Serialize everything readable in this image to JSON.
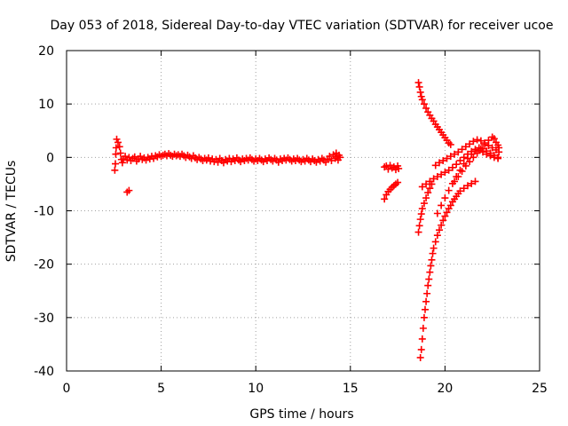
{
  "chart_data": {
    "type": "scatter",
    "title": "Day 053 of 2018, Sidereal Day-to-day VTEC variation (SDTVAR) for receiver ucoe",
    "xlabel": "GPS time / hours",
    "ylabel": "SDTVAR / TECUs",
    "xlim": [
      0,
      25
    ],
    "ylim": [
      -40,
      20
    ],
    "x_ticks": [
      0,
      5,
      10,
      15,
      20,
      25
    ],
    "y_ticks": [
      -40,
      -30,
      -20,
      -10,
      0,
      10,
      20
    ],
    "x_tick_labels": [
      "0",
      "5",
      "10",
      "15",
      "20",
      "25"
    ],
    "y_tick_labels": [
      "-40",
      "-30",
      "-20",
      "-10",
      "0",
      "10",
      "20"
    ],
    "grid": true,
    "marker": "+",
    "color": "#ff0000",
    "series": [
      {
        "points": [
          [
            2.55,
            -2.4
          ],
          [
            2.58,
            -1.2
          ],
          [
            2.6,
            0.6
          ],
          [
            2.62,
            1.8
          ],
          [
            2.65,
            3.4
          ],
          [
            2.72,
            2.8
          ],
          [
            2.8,
            2.0
          ],
          [
            2.85,
            0.8
          ],
          [
            2.9,
            -0.4
          ],
          [
            2.95,
            -1.0
          ],
          [
            3.2,
            -6.5
          ],
          [
            3.3,
            -6.2
          ],
          [
            3.0,
            -0.3
          ],
          [
            3.1,
            0.2
          ],
          [
            3.2,
            -0.5
          ],
          [
            3.3,
            0.0
          ],
          [
            3.4,
            -0.6
          ],
          [
            3.5,
            -0.2
          ],
          [
            3.6,
            0.1
          ],
          [
            3.7,
            -0.7
          ],
          [
            3.8,
            -0.3
          ],
          [
            3.9,
            0.2
          ],
          [
            4.0,
            -0.4
          ],
          [
            4.1,
            -0.1
          ],
          [
            4.2,
            -0.5
          ],
          [
            4.3,
            0.0
          ],
          [
            4.4,
            -0.3
          ],
          [
            4.5,
            0.2
          ],
          [
            4.6,
            -0.2
          ],
          [
            4.7,
            0.3
          ],
          [
            4.8,
            0.1
          ],
          [
            4.9,
            0.5
          ],
          [
            5.0,
            0.2
          ],
          [
            5.1,
            0.4
          ],
          [
            5.2,
            0.6
          ],
          [
            5.3,
            0.3
          ],
          [
            5.4,
            0.7
          ],
          [
            5.5,
            0.4
          ],
          [
            5.6,
            0.2
          ],
          [
            5.7,
            0.6
          ],
          [
            5.8,
            0.3
          ],
          [
            5.9,
            0.5
          ],
          [
            6.0,
            0.2
          ],
          [
            6.1,
            0.6
          ],
          [
            6.2,
            0.3
          ],
          [
            6.3,
            0.0
          ],
          [
            6.4,
            0.4
          ],
          [
            6.5,
            0.1
          ],
          [
            6.6,
            -0.2
          ],
          [
            6.7,
            0.3
          ],
          [
            6.8,
            -0.1
          ],
          [
            6.9,
            -0.4
          ],
          [
            7.0,
            0.0
          ],
          [
            7.1,
            -0.3
          ],
          [
            7.2,
            -0.6
          ],
          [
            7.3,
            -0.2
          ],
          [
            7.4,
            -0.5
          ],
          [
            7.5,
            -0.1
          ],
          [
            7.6,
            -0.7
          ],
          [
            7.7,
            -0.3
          ],
          [
            7.8,
            -0.8
          ],
          [
            7.9,
            -0.4
          ],
          [
            8.0,
            -0.9
          ],
          [
            8.1,
            -0.2
          ],
          [
            8.2,
            -0.6
          ],
          [
            8.3,
            -1.0
          ],
          [
            8.4,
            -0.4
          ],
          [
            8.5,
            -0.7
          ],
          [
            8.6,
            -0.2
          ],
          [
            8.7,
            -0.8
          ],
          [
            8.8,
            -0.3
          ],
          [
            8.9,
            -0.6
          ],
          [
            9.0,
            -0.1
          ],
          [
            9.1,
            -0.5
          ],
          [
            9.2,
            -0.8
          ],
          [
            9.3,
            -0.3
          ],
          [
            9.4,
            -0.6
          ],
          [
            9.5,
            -0.2
          ],
          [
            9.6,
            -0.5
          ],
          [
            9.7,
            -0.1
          ],
          [
            9.8,
            -0.4
          ],
          [
            9.9,
            -0.7
          ],
          [
            10.0,
            -0.3
          ],
          [
            10.1,
            -0.6
          ],
          [
            10.2,
            -0.2
          ],
          [
            10.3,
            -0.5
          ],
          [
            10.4,
            -0.8
          ],
          [
            10.5,
            -0.3
          ],
          [
            10.6,
            -0.6
          ],
          [
            10.7,
            -0.1
          ],
          [
            10.8,
            -0.4
          ],
          [
            10.9,
            -0.7
          ],
          [
            11.0,
            -0.2
          ],
          [
            11.1,
            -0.5
          ],
          [
            11.2,
            -0.9
          ],
          [
            11.3,
            -0.3
          ],
          [
            11.4,
            -0.6
          ],
          [
            11.5,
            -0.2
          ],
          [
            11.6,
            -0.5
          ],
          [
            11.7,
            -0.1
          ],
          [
            11.8,
            -0.4
          ],
          [
            11.9,
            -0.7
          ],
          [
            12.0,
            -0.3
          ],
          [
            12.1,
            -0.6
          ],
          [
            12.2,
            -0.2
          ],
          [
            12.3,
            -0.5
          ],
          [
            12.4,
            -0.8
          ],
          [
            12.5,
            -0.4
          ],
          [
            12.6,
            -0.7
          ],
          [
            12.7,
            -0.2
          ],
          [
            12.8,
            -0.5
          ],
          [
            12.9,
            -0.8
          ],
          [
            13.0,
            -0.3
          ],
          [
            13.1,
            -0.6
          ],
          [
            13.2,
            -0.9
          ],
          [
            13.3,
            -0.4
          ],
          [
            13.4,
            -0.7
          ],
          [
            13.5,
            -0.2
          ],
          [
            13.6,
            -0.5
          ],
          [
            13.7,
            -0.9
          ],
          [
            13.8,
            -0.3
          ],
          [
            13.9,
            0.2
          ],
          [
            14.0,
            -0.6
          ],
          [
            14.1,
            0.5
          ],
          [
            14.2,
            -0.2
          ],
          [
            14.25,
            0.8
          ],
          [
            14.3,
            0.1
          ],
          [
            14.35,
            -0.5
          ],
          [
            14.4,
            0.4
          ],
          [
            14.45,
            0.0
          ],
          [
            16.8,
            -1.8
          ],
          [
            16.9,
            -1.6
          ],
          [
            17.0,
            -2.2
          ],
          [
            17.1,
            -1.5
          ],
          [
            17.2,
            -2.0
          ],
          [
            17.3,
            -1.8
          ],
          [
            17.4,
            -2.3
          ],
          [
            17.5,
            -1.6
          ],
          [
            17.55,
            -2.1
          ],
          [
            16.8,
            -7.8
          ],
          [
            16.9,
            -7.0
          ],
          [
            17.0,
            -6.4
          ],
          [
            17.1,
            -6.0
          ],
          [
            17.2,
            -5.6
          ],
          [
            17.3,
            -5.3
          ],
          [
            17.4,
            -5.0
          ],
          [
            17.5,
            -4.7
          ],
          [
            18.6,
            14.0
          ],
          [
            18.65,
            13.2
          ],
          [
            18.7,
            12.2
          ],
          [
            18.75,
            11.4
          ],
          [
            18.8,
            10.8
          ],
          [
            18.9,
            10.0
          ],
          [
            19.0,
            9.2
          ],
          [
            19.1,
            8.5
          ],
          [
            19.2,
            7.9
          ],
          [
            19.3,
            7.3
          ],
          [
            19.4,
            6.8
          ],
          [
            19.5,
            6.2
          ],
          [
            19.6,
            5.7
          ],
          [
            19.7,
            5.2
          ],
          [
            19.8,
            4.7
          ],
          [
            19.9,
            4.2
          ],
          [
            20.0,
            3.7
          ],
          [
            20.1,
            3.2
          ],
          [
            20.2,
            2.7
          ],
          [
            20.3,
            2.4
          ],
          [
            18.6,
            -14.0
          ],
          [
            18.65,
            -12.8
          ],
          [
            18.7,
            -11.6
          ],
          [
            18.75,
            -10.6
          ],
          [
            18.8,
            -9.6
          ],
          [
            18.9,
            -8.6
          ],
          [
            19.0,
            -7.6
          ],
          [
            19.1,
            -6.6
          ],
          [
            19.2,
            -5.8
          ],
          [
            19.3,
            -5.0
          ],
          [
            18.7,
            -37.5
          ],
          [
            18.75,
            -36.0
          ],
          [
            18.8,
            -34.0
          ],
          [
            18.85,
            -32.0
          ],
          [
            18.9,
            -30.0
          ],
          [
            18.95,
            -28.5
          ],
          [
            19.0,
            -27.0
          ],
          [
            19.05,
            -25.5
          ],
          [
            19.1,
            -24.0
          ],
          [
            19.15,
            -22.8
          ],
          [
            19.2,
            -21.5
          ],
          [
            19.25,
            -20.3
          ],
          [
            19.3,
            -19.2
          ],
          [
            19.35,
            -18.0
          ],
          [
            19.4,
            -17.0
          ],
          [
            19.5,
            -15.8
          ],
          [
            19.6,
            -14.6
          ],
          [
            19.7,
            -13.6
          ],
          [
            19.8,
            -12.7
          ],
          [
            19.9,
            -11.8
          ],
          [
            20.0,
            -11.0
          ],
          [
            20.1,
            -10.3
          ],
          [
            20.2,
            -9.6
          ],
          [
            20.3,
            -9.0
          ],
          [
            20.4,
            -8.3
          ],
          [
            20.5,
            -7.8
          ],
          [
            20.6,
            -7.3
          ],
          [
            20.7,
            -6.8
          ],
          [
            20.8,
            -6.3
          ],
          [
            21.0,
            -5.8
          ],
          [
            21.2,
            -5.3
          ],
          [
            21.4,
            -4.9
          ],
          [
            21.6,
            -4.5
          ],
          [
            18.8,
            -5.5
          ],
          [
            19.0,
            -5.0
          ],
          [
            19.2,
            -4.5
          ],
          [
            19.4,
            -4.0
          ],
          [
            19.6,
            -3.6
          ],
          [
            19.8,
            -3.2
          ],
          [
            20.0,
            -2.8
          ],
          [
            20.2,
            -2.4
          ],
          [
            20.4,
            -1.9
          ],
          [
            20.6,
            -1.3
          ],
          [
            20.8,
            -0.6
          ],
          [
            21.0,
            0.0
          ],
          [
            21.2,
            0.6
          ],
          [
            21.4,
            1.1
          ],
          [
            21.6,
            1.5
          ],
          [
            21.8,
            1.8
          ],
          [
            22.0,
            1.6
          ],
          [
            22.2,
            1.2
          ],
          [
            22.4,
            0.8
          ],
          [
            22.6,
            0.4
          ],
          [
            22.8,
            0.0
          ],
          [
            19.5,
            -1.5
          ],
          [
            19.7,
            -1.0
          ],
          [
            19.9,
            -0.6
          ],
          [
            20.1,
            -0.2
          ],
          [
            20.3,
            0.2
          ],
          [
            20.5,
            0.6
          ],
          [
            20.7,
            1.0
          ],
          [
            20.9,
            1.5
          ],
          [
            21.1,
            2.0
          ],
          [
            21.3,
            2.5
          ],
          [
            21.5,
            3.0
          ],
          [
            21.7,
            3.3
          ],
          [
            21.9,
            3.1
          ],
          [
            22.1,
            2.7
          ],
          [
            22.3,
            2.2
          ],
          [
            22.5,
            1.8
          ],
          [
            22.7,
            1.4
          ],
          [
            22.85,
            1.0
          ],
          [
            19.6,
            -10.5
          ],
          [
            19.8,
            -9.0
          ],
          [
            20.0,
            -7.6
          ],
          [
            20.2,
            -6.2
          ],
          [
            20.4,
            -4.9
          ],
          [
            20.6,
            -3.6
          ],
          [
            20.8,
            -2.4
          ],
          [
            21.0,
            -1.2
          ],
          [
            21.2,
            -0.2
          ],
          [
            21.4,
            0.6
          ],
          [
            21.6,
            1.2
          ],
          [
            21.8,
            1.3
          ],
          [
            22.0,
            1.0
          ],
          [
            22.2,
            0.6
          ],
          [
            22.4,
            0.3
          ],
          [
            22.6,
            0.0
          ],
          [
            22.8,
            -0.2
          ],
          [
            20.5,
            -4.5
          ],
          [
            20.7,
            -3.6
          ],
          [
            20.9,
            -2.6
          ],
          [
            21.1,
            -1.6
          ],
          [
            21.3,
            -0.8
          ],
          [
            21.5,
            0.0
          ],
          [
            21.7,
            0.8
          ],
          [
            21.9,
            1.6
          ],
          [
            22.1,
            2.4
          ],
          [
            22.3,
            3.2
          ],
          [
            22.5,
            3.8
          ],
          [
            22.6,
            3.5
          ],
          [
            22.7,
            2.8
          ],
          [
            22.8,
            2.3
          ],
          [
            22.85,
            1.8
          ]
        ]
      }
    ]
  }
}
